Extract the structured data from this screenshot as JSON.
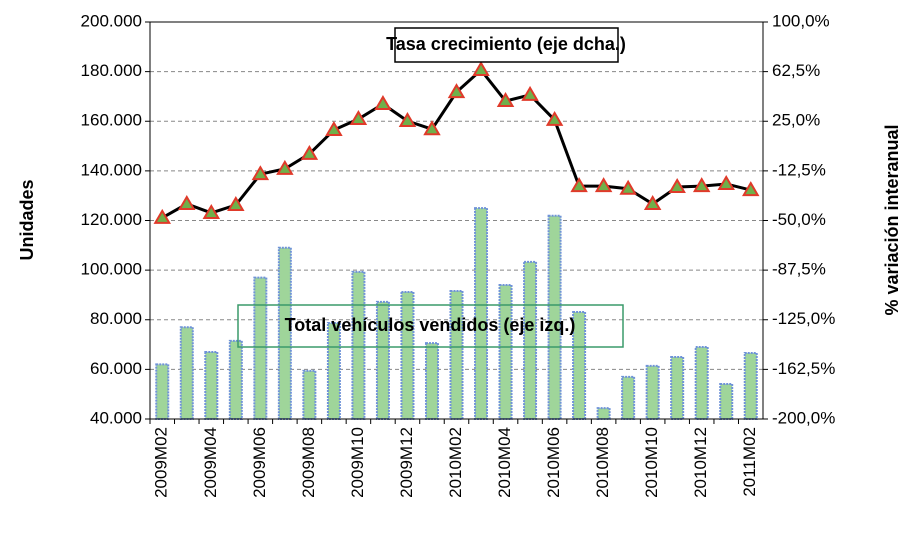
{
  "chart_data": {
    "type": "bar-line",
    "categories": [
      "2009M02",
      null,
      "2009M04",
      null,
      "2009M06",
      null,
      "2009M08",
      null,
      "2009M10",
      null,
      "2009M12",
      null,
      "2010M02",
      null,
      "2010M04",
      null,
      "2010M06",
      null,
      "2010M08",
      null,
      "2010M10",
      null,
      "2010M12",
      null,
      "2011M02"
    ],
    "series": [
      {
        "name": "Total vehículos vendidos (eje izq.)",
        "type": "bar",
        "color": "#9fd59a",
        "edge": "#6f93d8",
        "values": [
          62000,
          77000,
          67000,
          71500,
          97000,
          109000,
          59400,
          78700,
          99300,
          87200,
          91200,
          70600,
          91600,
          125000,
          94000,
          103300,
          121900,
          83100,
          44400,
          57000,
          61400,
          65000,
          69000,
          54100,
          66600
        ]
      },
      {
        "name": "Tasa crecimiento (eje dcha.)",
        "type": "line",
        "axis": "y2",
        "color": "#000000",
        "marker_color": "#e03a2a",
        "marker_fill": "#6fb04a",
        "values": [
          -48,
          -37.5,
          -44.3,
          -38.3,
          -15,
          -11,
          0.3,
          18.4,
          26.7,
          38,
          25.2,
          19,
          47,
          63.7,
          40.3,
          44.9,
          26,
          -24,
          -24,
          -26,
          -37.5,
          -24.7,
          -24,
          -22.4,
          -27
        ]
      }
    ],
    "ylabel": "Unidades",
    "y2label": "% variación interanual",
    "ylim": [
      40000,
      200000
    ],
    "yticks": [
      {
        "value": 40000,
        "label": "40.000"
      },
      {
        "value": 60000,
        "label": "60.000"
      },
      {
        "value": 80000,
        "label": "80.000"
      },
      {
        "value": 100000,
        "label": "100.000"
      },
      {
        "value": 120000,
        "label": "120.000"
      },
      {
        "value": 140000,
        "label": "140.000"
      },
      {
        "value": 160000,
        "label": "160.000"
      },
      {
        "value": 180000,
        "label": "180.000"
      },
      {
        "value": 200000,
        "label": "200.000"
      }
    ],
    "y2lim": [
      -200,
      100
    ],
    "y2ticks": [
      {
        "value": -200,
        "label": "-200,0%"
      },
      {
        "value": -162.5,
        "label": "-162,5%"
      },
      {
        "value": -125,
        "label": "-125,0%"
      },
      {
        "value": -87.5,
        "label": "-87,5%"
      },
      {
        "value": -50,
        "label": "-50,0%"
      },
      {
        "value": -12.5,
        "label": "-12,5%"
      },
      {
        "value": 25,
        "label": "25,0%"
      },
      {
        "value": 62.5,
        "label": "62,5%"
      },
      {
        "value": 100,
        "label": "100,0%"
      }
    ],
    "grid": true
  }
}
